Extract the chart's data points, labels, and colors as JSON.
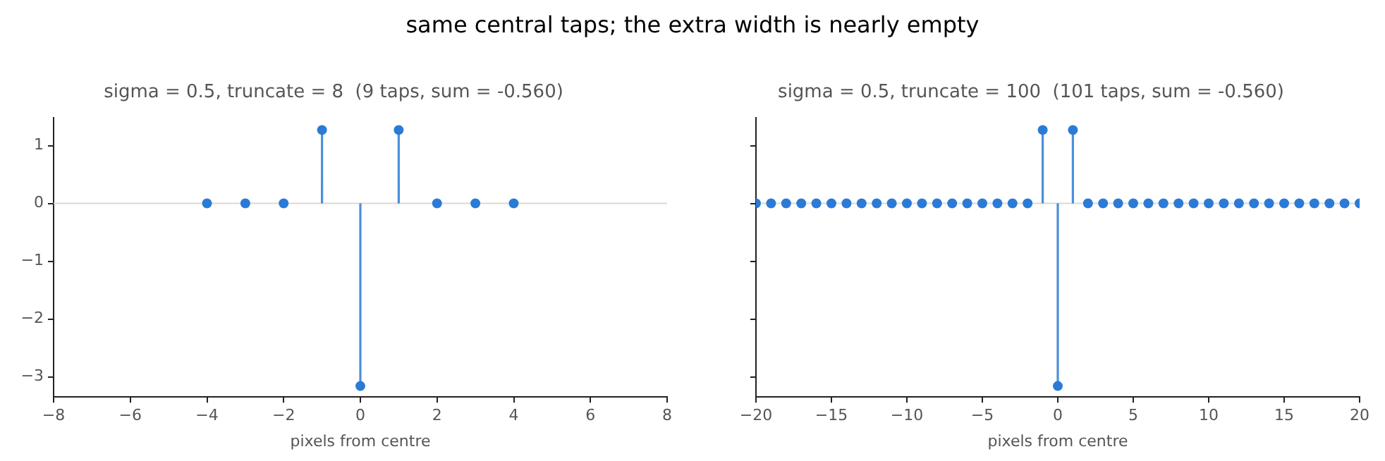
{
  "chart_data": [
    {
      "type": "lollipop",
      "title": "sigma = 0.5, truncate = 8  (9 taps, sum = -0.560)",
      "xlabel": "pixels from centre",
      "annotations": [
        "same central taps; the extra width is nearly empty"
      ],
      "series": [
        {
          "color": "#2b7bd6",
          "x": [
            -4,
            -3,
            -2,
            -1,
            0,
            1,
            2,
            3,
            4
          ],
          "values": [
            0,
            0,
            0,
            1.27,
            -3.16,
            1.27,
            0,
            0,
            0
          ]
        }
      ],
      "xlim": [
        -8,
        8
      ],
      "xticks": [
        -8,
        -6,
        -4,
        -2,
        0,
        2,
        4,
        6,
        8
      ],
      "ylim": [
        -3.35,
        1.48
      ],
      "yticks": [
        -3,
        -2,
        -1,
        0,
        1
      ],
      "ref_lines": [
        {
          "axis": "y",
          "value": 0,
          "color": "#dcdad5"
        }
      ],
      "marker": "circle",
      "legend": false,
      "grid": false
    },
    {
      "type": "lollipop",
      "title": "sigma = 0.5, truncate = 100  (101 taps, sum = -0.560)",
      "xlabel": "pixels from centre",
      "series": [
        {
          "color": "#2b7bd6",
          "x": [
            -20,
            -19,
            -18,
            -17,
            -16,
            -15,
            -14,
            -13,
            -12,
            -11,
            -10,
            -9,
            -8,
            -7,
            -6,
            -5,
            -4,
            -3,
            -2,
            -1,
            0,
            1,
            2,
            3,
            4,
            5,
            6,
            7,
            8,
            9,
            10,
            11,
            12,
            13,
            14,
            15,
            16,
            17,
            18,
            19,
            20
          ],
          "values": [
            0,
            0,
            0,
            0,
            0,
            0,
            0,
            0,
            0,
            0,
            0,
            0,
            0,
            0,
            0,
            0,
            0,
            0,
            0,
            1.27,
            -3.16,
            1.27,
            0,
            0,
            0,
            0,
            0,
            0,
            0,
            0,
            0,
            0,
            0,
            0,
            0,
            0,
            0,
            0,
            0,
            0,
            0
          ]
        }
      ],
      "xlim": [
        -20,
        20
      ],
      "xticks": [
        -20,
        -15,
        -10,
        -5,
        0,
        5,
        10,
        15,
        20
      ],
      "ylim": [
        -3.35,
        1.48
      ],
      "yticks": [
        -3,
        -2,
        -1,
        0,
        1
      ],
      "ref_lines": [
        {
          "axis": "y",
          "value": 0,
          "color": "#dcdad5"
        }
      ],
      "marker": "circle",
      "legend": false,
      "grid": false,
      "tick_labels": "x"
    }
  ]
}
